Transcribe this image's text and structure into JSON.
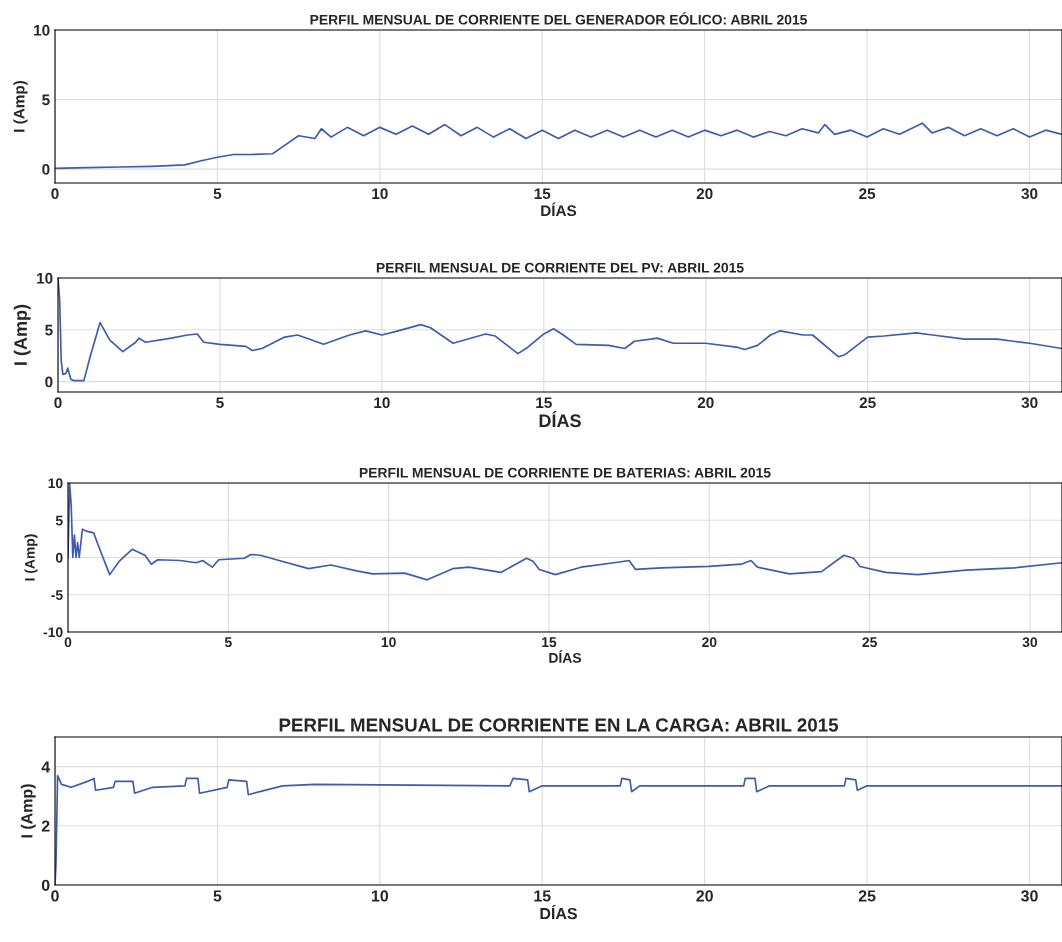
{
  "chart_data": [
    {
      "type": "line",
      "title": "PERFIL MENSUAL DE CORRIENTE DEL GENERADOR EÓLICO: ABRIL 2015",
      "xlabel": "DÍAS",
      "ylabel": "I (Amp)",
      "xlim": [
        0,
        31
      ],
      "xticks": [
        0,
        5,
        10,
        15,
        20,
        25,
        30
      ],
      "ylim": [
        -1,
        10
      ],
      "yticks": [
        0,
        5,
        10
      ],
      "grid": true,
      "series": [
        {
          "color": "#3f5bb0",
          "x": [
            0,
            1,
            2,
            3,
            4,
            4.5,
            5,
            5.5,
            6,
            6.7,
            7,
            7.5,
            8,
            8.2,
            8.5,
            9,
            9.5,
            10,
            10.5,
            11,
            11.5,
            12,
            12.5,
            13,
            13.5,
            14,
            14.5,
            15,
            15.5,
            16,
            16.5,
            17,
            17.5,
            18,
            18.5,
            19,
            19.5,
            20,
            20.5,
            21,
            21.5,
            22,
            22.5,
            23,
            23.5,
            23.7,
            24,
            24.5,
            25,
            25.5,
            26,
            26.7,
            27,
            27.5,
            28,
            28.5,
            29,
            29.5,
            30,
            30.5,
            31
          ],
          "values": [
            0.05,
            0.1,
            0.15,
            0.2,
            0.3,
            0.6,
            0.85,
            1.05,
            1.05,
            1.1,
            1.6,
            2.4,
            2.2,
            2.9,
            2.3,
            3.0,
            2.4,
            3.0,
            2.5,
            3.1,
            2.5,
            3.2,
            2.4,
            3.0,
            2.3,
            2.9,
            2.2,
            2.8,
            2.2,
            2.8,
            2.3,
            2.8,
            2.3,
            2.8,
            2.3,
            2.8,
            2.3,
            2.8,
            2.4,
            2.8,
            2.3,
            2.7,
            2.4,
            2.9,
            2.6,
            3.2,
            2.5,
            2.8,
            2.3,
            2.9,
            2.5,
            3.3,
            2.6,
            3.0,
            2.4,
            2.9,
            2.4,
            2.9,
            2.3,
            2.8,
            2.5
          ]
        }
      ]
    },
    {
      "type": "line",
      "title": "PERFIL MENSUAL DE CORRIENTE DEL PV: ABRIL 2015",
      "xlabel": "DÍAS",
      "ylabel": "I (Amp)",
      "xlim": [
        0,
        31
      ],
      "xticks": [
        0,
        5,
        10,
        15,
        20,
        25,
        30
      ],
      "ylim": [
        -1,
        10
      ],
      "yticks": [
        0,
        5,
        10
      ],
      "grid": true,
      "series": [
        {
          "color": "#3f5bb0",
          "x": [
            0,
            0.05,
            0.1,
            0.15,
            0.25,
            0.3,
            0.4,
            0.5,
            0.8,
            1.0,
            1.3,
            1.6,
            2.0,
            2.4,
            2.5,
            2.7,
            3.5,
            4,
            4.3,
            4.5,
            5,
            5.8,
            6,
            6.3,
            7,
            7.4,
            8.2,
            9,
            9.5,
            10,
            10.5,
            11.2,
            11.5,
            12.2,
            13.2,
            13.5,
            14.2,
            14.5,
            15,
            15.3,
            15.6,
            16,
            17,
            17.5,
            17.8,
            18.3,
            18.5,
            19,
            20,
            21,
            21.2,
            21.6,
            22,
            22.3,
            23,
            23.3,
            24.1,
            24.3,
            25,
            25.5,
            26.5,
            27,
            28,
            29,
            29.5,
            30,
            31
          ],
          "values": [
            10,
            8,
            2,
            0.7,
            0.8,
            1.3,
            0.2,
            0.1,
            0.1,
            2.5,
            5.7,
            4.0,
            2.9,
            3.8,
            4.2,
            3.8,
            4.2,
            4.5,
            4.6,
            3.8,
            3.6,
            3.4,
            3.0,
            3.2,
            4.3,
            4.5,
            3.6,
            4.5,
            4.9,
            4.5,
            4.9,
            5.5,
            5.2,
            3.7,
            4.6,
            4.4,
            2.7,
            3.3,
            4.6,
            5.1,
            4.5,
            3.6,
            3.5,
            3.2,
            3.9,
            4.1,
            4.2,
            3.7,
            3.7,
            3.3,
            3.1,
            3.5,
            4.5,
            4.9,
            4.5,
            4.5,
            2.4,
            2.6,
            4.3,
            4.4,
            4.7,
            4.5,
            4.1,
            4.1,
            3.9,
            3.7,
            3.2
          ]
        }
      ]
    },
    {
      "type": "line",
      "title": "PERFIL MENSUAL DE CORRIENTE DE BATERIAS: ABRIL 2015",
      "xlabel": "DÍAS",
      "ylabel": "I (Amp)",
      "xlim": [
        0,
        31
      ],
      "xticks": [
        0,
        5,
        10,
        15,
        20,
        25,
        30
      ],
      "ylim": [
        -10,
        10
      ],
      "yticks": [
        -10,
        -5,
        0,
        5,
        10
      ],
      "grid": true,
      "series": [
        {
          "color": "#3f5bb0",
          "x": [
            0,
            0.05,
            0.1,
            0.15,
            0.2,
            0.25,
            0.3,
            0.35,
            0.45,
            0.6,
            0.8,
            1.0,
            1.3,
            1.6,
            2.0,
            2.4,
            2.6,
            2.8,
            3.5,
            4,
            4.2,
            4.5,
            4.7,
            5.5,
            5.7,
            6,
            6.5,
            7.5,
            8.2,
            9,
            9.5,
            10.5,
            11.2,
            12,
            12.5,
            13.5,
            14.3,
            14.5,
            14.7,
            15.2,
            16,
            17.2,
            17.5,
            17.7,
            18.5,
            20,
            21,
            21.3,
            21.5,
            22.5,
            23.5,
            24.2,
            24.5,
            24.7,
            25.5,
            26.5,
            28,
            29.5,
            31
          ],
          "values": [
            0,
            10,
            7,
            0,
            3,
            0,
            2,
            0,
            3.8,
            3.5,
            3.3,
            1.0,
            -2.3,
            -0.5,
            1.1,
            0.3,
            -0.9,
            -0.3,
            -0.4,
            -0.7,
            -0.4,
            -1.3,
            -0.3,
            -0.1,
            0.4,
            0.3,
            -0.3,
            -1.5,
            -1.0,
            -1.8,
            -2.2,
            -2.1,
            -3.0,
            -1.5,
            -1.3,
            -2.0,
            -0.1,
            -0.5,
            -1.6,
            -2.3,
            -1.3,
            -0.6,
            -0.4,
            -1.6,
            -1.4,
            -1.2,
            -0.9,
            -0.4,
            -1.3,
            -2.2,
            -1.9,
            0.3,
            -0.1,
            -1.2,
            -2.0,
            -2.3,
            -1.7,
            -1.4,
            -0.7
          ]
        }
      ]
    },
    {
      "type": "line",
      "title": "PERFIL MENSUAL DE CORRIENTE EN LA CARGA: ABRIL 2015",
      "xlabel": "DÍAS",
      "ylabel": "I (Amp)",
      "xlim": [
        0,
        31
      ],
      "xticks": [
        0,
        5,
        10,
        15,
        20,
        25,
        30
      ],
      "ylim": [
        0,
        5
      ],
      "yticks": [
        0,
        2,
        4
      ],
      "grid": true,
      "series": [
        {
          "color": "#3f5bb0",
          "x": [
            0,
            0.03,
            0.08,
            0.2,
            0.5,
            1,
            1.2,
            1.25,
            1.8,
            1.85,
            2.4,
            2.45,
            3,
            4,
            4.05,
            4.4,
            4.45,
            5.3,
            5.35,
            5.9,
            5.95,
            7,
            8,
            14,
            14.1,
            14.55,
            14.6,
            15,
            17.4,
            17.45,
            17.7,
            17.75,
            18,
            21.2,
            21.25,
            21.55,
            21.6,
            22,
            24.3,
            24.35,
            24.65,
            24.7,
            25,
            31
          ],
          "values": [
            0,
            0.7,
            3.7,
            3.4,
            3.3,
            3.5,
            3.6,
            3.2,
            3.3,
            3.5,
            3.5,
            3.1,
            3.3,
            3.35,
            3.6,
            3.6,
            3.1,
            3.3,
            3.55,
            3.5,
            3.05,
            3.35,
            3.4,
            3.35,
            3.6,
            3.55,
            3.15,
            3.35,
            3.35,
            3.6,
            3.55,
            3.15,
            3.35,
            3.35,
            3.6,
            3.6,
            3.15,
            3.35,
            3.35,
            3.6,
            3.55,
            3.2,
            3.35,
            3.35
          ]
        }
      ]
    }
  ]
}
